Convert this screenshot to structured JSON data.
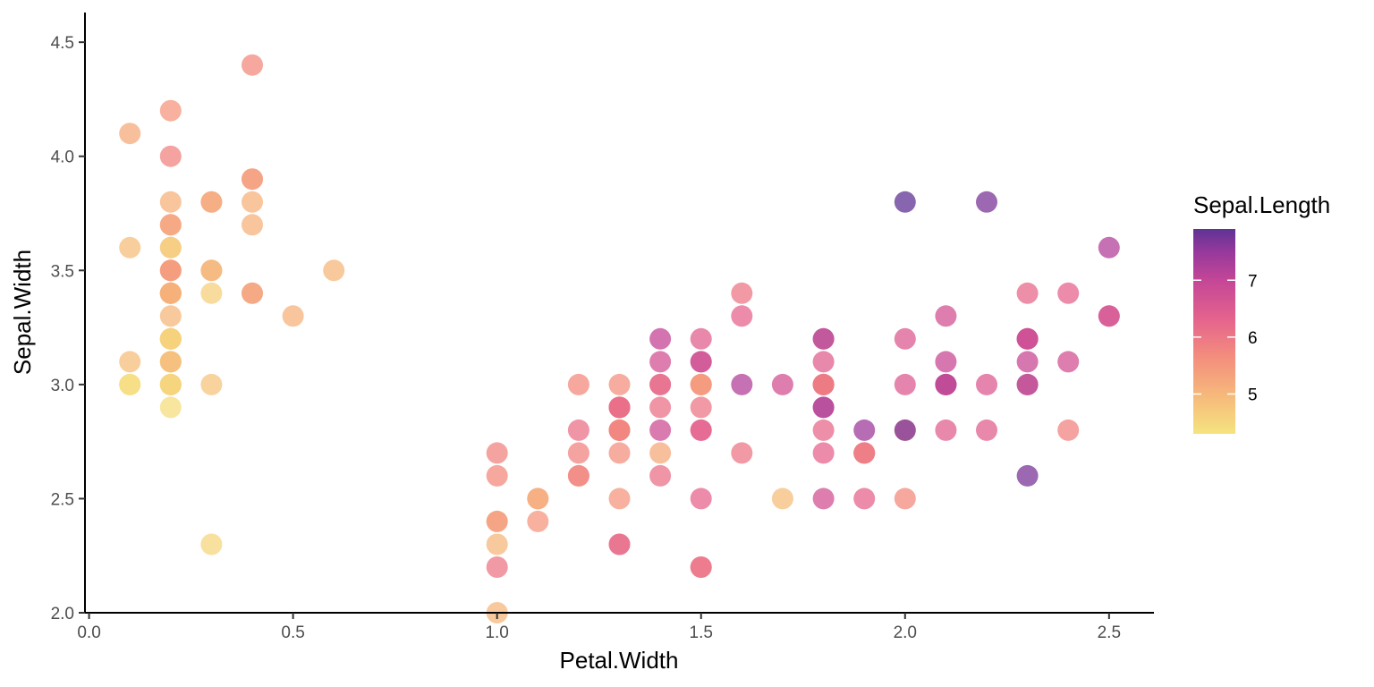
{
  "chart_data": {
    "type": "scatter",
    "xlabel": "Petal.Width",
    "ylabel": "Sepal.Width",
    "xlim": [
      -0.01,
      2.61
    ],
    "ylim": [
      2.0,
      4.63
    ],
    "x_ticks": [
      {
        "value": 0.0,
        "label": "0.0"
      },
      {
        "value": 0.5,
        "label": "0.5"
      },
      {
        "value": 1.0,
        "label": "1.0"
      },
      {
        "value": 1.5,
        "label": "1.5"
      },
      {
        "value": 2.0,
        "label": "2.0"
      },
      {
        "value": 2.5,
        "label": "2.5"
      }
    ],
    "y_ticks": [
      {
        "value": 2.0,
        "label": "2.0"
      },
      {
        "value": 2.5,
        "label": "2.5"
      },
      {
        "value": 3.0,
        "label": "3.0"
      },
      {
        "value": 3.5,
        "label": "3.5"
      },
      {
        "value": 4.0,
        "label": "4.0"
      },
      {
        "value": 4.5,
        "label": "4.5"
      }
    ],
    "color_legend": {
      "title": "Sepal.Length",
      "domain": [
        4.3,
        7.9
      ],
      "ticks": [
        {
          "value": 5,
          "label": "5"
        },
        {
          "value": 6,
          "label": "6"
        },
        {
          "value": 7,
          "label": "7"
        }
      ],
      "stops": [
        {
          "value": 4.3,
          "color": "#f5e37f"
        },
        {
          "value": 5.0,
          "color": "#f6b77b"
        },
        {
          "value": 5.7,
          "color": "#f38a7e"
        },
        {
          "value": 6.3,
          "color": "#e5648d"
        },
        {
          "value": 7.0,
          "color": "#c44697"
        },
        {
          "value": 7.5,
          "color": "#96399c"
        },
        {
          "value": 7.9,
          "color": "#5f3394"
        }
      ]
    },
    "grid": false,
    "legend_position": "right",
    "point_alpha": 0.75,
    "points": [
      {
        "x": 0.2,
        "y": 3.5,
        "c": 5.1
      },
      {
        "x": 0.2,
        "y": 3.0,
        "c": 4.9
      },
      {
        "x": 0.2,
        "y": 3.2,
        "c": 4.7
      },
      {
        "x": 0.2,
        "y": 3.1,
        "c": 4.6
      },
      {
        "x": 0.2,
        "y": 3.6,
        "c": 5.0
      },
      {
        "x": 0.4,
        "y": 3.9,
        "c": 5.4
      },
      {
        "x": 0.3,
        "y": 3.4,
        "c": 4.6
      },
      {
        "x": 0.2,
        "y": 3.4,
        "c": 5.0
      },
      {
        "x": 0.2,
        "y": 2.9,
        "c": 4.4
      },
      {
        "x": 0.1,
        "y": 3.1,
        "c": 4.9
      },
      {
        "x": 0.2,
        "y": 3.7,
        "c": 5.4
      },
      {
        "x": 0.2,
        "y": 3.4,
        "c": 4.8
      },
      {
        "x": 0.1,
        "y": 3.0,
        "c": 4.8
      },
      {
        "x": 0.1,
        "y": 3.0,
        "c": 4.3
      },
      {
        "x": 0.2,
        "y": 4.0,
        "c": 5.8
      },
      {
        "x": 0.4,
        "y": 4.4,
        "c": 5.7
      },
      {
        "x": 0.4,
        "y": 3.9,
        "c": 5.4
      },
      {
        "x": 0.3,
        "y": 3.5,
        "c": 5.1
      },
      {
        "x": 0.3,
        "y": 3.8,
        "c": 5.7
      },
      {
        "x": 0.3,
        "y": 3.8,
        "c": 5.1
      },
      {
        "x": 0.2,
        "y": 3.4,
        "c": 5.4
      },
      {
        "x": 0.4,
        "y": 3.7,
        "c": 5.1
      },
      {
        "x": 0.2,
        "y": 3.6,
        "c": 4.6
      },
      {
        "x": 0.5,
        "y": 3.3,
        "c": 5.1
      },
      {
        "x": 0.2,
        "y": 3.4,
        "c": 4.8
      },
      {
        "x": 0.2,
        "y": 3.0,
        "c": 5.0
      },
      {
        "x": 0.4,
        "y": 3.4,
        "c": 5.0
      },
      {
        "x": 0.2,
        "y": 3.5,
        "c": 5.2
      },
      {
        "x": 0.2,
        "y": 3.4,
        "c": 5.2
      },
      {
        "x": 0.2,
        "y": 3.2,
        "c": 4.7
      },
      {
        "x": 0.2,
        "y": 3.1,
        "c": 4.8
      },
      {
        "x": 0.4,
        "y": 3.4,
        "c": 5.4
      },
      {
        "x": 0.1,
        "y": 4.1,
        "c": 5.2
      },
      {
        "x": 0.2,
        "y": 4.2,
        "c": 5.5
      },
      {
        "x": 0.2,
        "y": 3.1,
        "c": 4.9
      },
      {
        "x": 0.2,
        "y": 3.2,
        "c": 5.0
      },
      {
        "x": 0.2,
        "y": 3.5,
        "c": 5.5
      },
      {
        "x": 0.1,
        "y": 3.6,
        "c": 4.9
      },
      {
        "x": 0.2,
        "y": 3.0,
        "c": 4.4
      },
      {
        "x": 0.2,
        "y": 3.4,
        "c": 5.1
      },
      {
        "x": 0.3,
        "y": 3.5,
        "c": 5.0
      },
      {
        "x": 0.3,
        "y": 2.3,
        "c": 4.5
      },
      {
        "x": 0.2,
        "y": 3.2,
        "c": 4.4
      },
      {
        "x": 0.6,
        "y": 3.5,
        "c": 5.0
      },
      {
        "x": 0.4,
        "y": 3.8,
        "c": 5.1
      },
      {
        "x": 0.3,
        "y": 3.0,
        "c": 4.8
      },
      {
        "x": 0.2,
        "y": 3.8,
        "c": 5.1
      },
      {
        "x": 0.2,
        "y": 3.2,
        "c": 4.6
      },
      {
        "x": 0.2,
        "y": 3.7,
        "c": 5.3
      },
      {
        "x": 0.2,
        "y": 3.3,
        "c": 5.0
      },
      {
        "x": 1.4,
        "y": 3.2,
        "c": 7.0
      },
      {
        "x": 1.5,
        "y": 3.2,
        "c": 6.4
      },
      {
        "x": 1.5,
        "y": 3.1,
        "c": 6.9
      },
      {
        "x": 1.3,
        "y": 2.3,
        "c": 5.5
      },
      {
        "x": 1.5,
        "y": 2.8,
        "c": 6.5
      },
      {
        "x": 1.3,
        "y": 2.8,
        "c": 5.7
      },
      {
        "x": 1.6,
        "y": 3.3,
        "c": 6.3
      },
      {
        "x": 1.0,
        "y": 2.4,
        "c": 4.9
      },
      {
        "x": 1.3,
        "y": 2.9,
        "c": 6.6
      },
      {
        "x": 1.4,
        "y": 2.7,
        "c": 5.2
      },
      {
        "x": 1.0,
        "y": 2.0,
        "c": 5.0
      },
      {
        "x": 1.5,
        "y": 3.0,
        "c": 5.9
      },
      {
        "x": 1.0,
        "y": 2.2,
        "c": 6.0
      },
      {
        "x": 1.4,
        "y": 2.9,
        "c": 6.1
      },
      {
        "x": 1.3,
        "y": 2.9,
        "c": 5.6
      },
      {
        "x": 1.4,
        "y": 3.1,
        "c": 6.7
      },
      {
        "x": 1.5,
        "y": 3.0,
        "c": 5.6
      },
      {
        "x": 1.0,
        "y": 2.7,
        "c": 5.8
      },
      {
        "x": 1.5,
        "y": 2.2,
        "c": 6.2
      },
      {
        "x": 1.1,
        "y": 2.5,
        "c": 5.6
      },
      {
        "x": 1.8,
        "y": 3.2,
        "c": 5.9
      },
      {
        "x": 1.3,
        "y": 2.8,
        "c": 6.1
      },
      {
        "x": 1.5,
        "y": 2.5,
        "c": 6.3
      },
      {
        "x": 1.2,
        "y": 2.8,
        "c": 6.1
      },
      {
        "x": 1.3,
        "y": 2.9,
        "c": 6.4
      },
      {
        "x": 1.4,
        "y": 3.0,
        "c": 6.6
      },
      {
        "x": 1.4,
        "y": 2.8,
        "c": 6.8
      },
      {
        "x": 1.7,
        "y": 3.0,
        "c": 6.7
      },
      {
        "x": 1.5,
        "y": 2.9,
        "c": 6.0
      },
      {
        "x": 1.0,
        "y": 2.6,
        "c": 5.7
      },
      {
        "x": 1.1,
        "y": 2.4,
        "c": 5.5
      },
      {
        "x": 1.0,
        "y": 2.4,
        "c": 5.5
      },
      {
        "x": 1.2,
        "y": 2.7,
        "c": 5.8
      },
      {
        "x": 1.6,
        "y": 2.7,
        "c": 6.0
      },
      {
        "x": 1.5,
        "y": 3.0,
        "c": 5.4
      },
      {
        "x": 1.6,
        "y": 3.4,
        "c": 6.0
      },
      {
        "x": 1.5,
        "y": 3.1,
        "c": 6.7
      },
      {
        "x": 1.3,
        "y": 2.3,
        "c": 6.3
      },
      {
        "x": 1.3,
        "y": 3.0,
        "c": 5.6
      },
      {
        "x": 1.3,
        "y": 2.5,
        "c": 5.5
      },
      {
        "x": 1.2,
        "y": 2.6,
        "c": 5.5
      },
      {
        "x": 1.4,
        "y": 3.0,
        "c": 6.1
      },
      {
        "x": 1.2,
        "y": 2.6,
        "c": 5.8
      },
      {
        "x": 1.0,
        "y": 2.3,
        "c": 5.0
      },
      {
        "x": 1.3,
        "y": 2.7,
        "c": 5.6
      },
      {
        "x": 1.2,
        "y": 3.0,
        "c": 5.7
      },
      {
        "x": 1.3,
        "y": 2.9,
        "c": 5.7
      },
      {
        "x": 1.3,
        "y": 2.9,
        "c": 6.2
      },
      {
        "x": 1.1,
        "y": 2.5,
        "c": 5.1
      },
      {
        "x": 1.3,
        "y": 2.8,
        "c": 5.7
      },
      {
        "x": 2.5,
        "y": 3.3,
        "c": 6.3
      },
      {
        "x": 1.9,
        "y": 2.7,
        "c": 5.8
      },
      {
        "x": 2.1,
        "y": 3.0,
        "c": 7.1
      },
      {
        "x": 1.8,
        "y": 2.9,
        "c": 6.3
      },
      {
        "x": 2.2,
        "y": 3.0,
        "c": 6.5
      },
      {
        "x": 2.1,
        "y": 3.0,
        "c": 7.6
      },
      {
        "x": 1.7,
        "y": 2.5,
        "c": 4.9
      },
      {
        "x": 1.8,
        "y": 2.9,
        "c": 7.3
      },
      {
        "x": 1.8,
        "y": 2.5,
        "c": 6.7
      },
      {
        "x": 2.5,
        "y": 3.6,
        "c": 7.2
      },
      {
        "x": 2.0,
        "y": 3.2,
        "c": 6.5
      },
      {
        "x": 1.9,
        "y": 2.7,
        "c": 6.4
      },
      {
        "x": 2.1,
        "y": 3.0,
        "c": 6.8
      },
      {
        "x": 2.0,
        "y": 2.5,
        "c": 5.7
      },
      {
        "x": 2.4,
        "y": 2.8,
        "c": 5.8
      },
      {
        "x": 2.3,
        "y": 3.2,
        "c": 6.4
      },
      {
        "x": 1.8,
        "y": 3.0,
        "c": 6.5
      },
      {
        "x": 2.2,
        "y": 3.8,
        "c": 7.7
      },
      {
        "x": 2.3,
        "y": 2.6,
        "c": 7.7
      },
      {
        "x": 1.5,
        "y": 2.2,
        "c": 6.0
      },
      {
        "x": 2.3,
        "y": 3.2,
        "c": 6.9
      },
      {
        "x": 2.0,
        "y": 2.8,
        "c": 5.6
      },
      {
        "x": 2.0,
        "y": 2.8,
        "c": 7.7
      },
      {
        "x": 1.8,
        "y": 2.7,
        "c": 6.3
      },
      {
        "x": 2.1,
        "y": 3.3,
        "c": 6.7
      },
      {
        "x": 1.8,
        "y": 3.2,
        "c": 7.2
      },
      {
        "x": 1.8,
        "y": 2.8,
        "c": 6.2
      },
      {
        "x": 1.8,
        "y": 3.0,
        "c": 6.1
      },
      {
        "x": 2.1,
        "y": 2.8,
        "c": 6.4
      },
      {
        "x": 1.6,
        "y": 3.0,
        "c": 7.2
      },
      {
        "x": 1.9,
        "y": 2.8,
        "c": 7.4
      },
      {
        "x": 2.0,
        "y": 3.8,
        "c": 7.9
      },
      {
        "x": 2.2,
        "y": 2.8,
        "c": 6.4
      },
      {
        "x": 1.5,
        "y": 2.8,
        "c": 6.3
      },
      {
        "x": 1.4,
        "y": 2.6,
        "c": 6.1
      },
      {
        "x": 2.3,
        "y": 3.0,
        "c": 7.7
      },
      {
        "x": 2.4,
        "y": 3.4,
        "c": 6.3
      },
      {
        "x": 1.8,
        "y": 3.1,
        "c": 6.4
      },
      {
        "x": 1.8,
        "y": 3.0,
        "c": 6.0
      },
      {
        "x": 2.1,
        "y": 3.1,
        "c": 6.9
      },
      {
        "x": 2.4,
        "y": 3.1,
        "c": 6.7
      },
      {
        "x": 2.3,
        "y": 3.1,
        "c": 6.9
      },
      {
        "x": 1.9,
        "y": 2.7,
        "c": 5.8
      },
      {
        "x": 2.3,
        "y": 3.2,
        "c": 6.8
      },
      {
        "x": 2.5,
        "y": 3.3,
        "c": 6.7
      },
      {
        "x": 2.3,
        "y": 3.0,
        "c": 6.7
      },
      {
        "x": 1.9,
        "y": 2.5,
        "c": 6.3
      },
      {
        "x": 2.0,
        "y": 3.0,
        "c": 6.5
      },
      {
        "x": 2.3,
        "y": 3.4,
        "c": 6.2
      },
      {
        "x": 1.8,
        "y": 3.0,
        "c": 5.9
      }
    ]
  }
}
